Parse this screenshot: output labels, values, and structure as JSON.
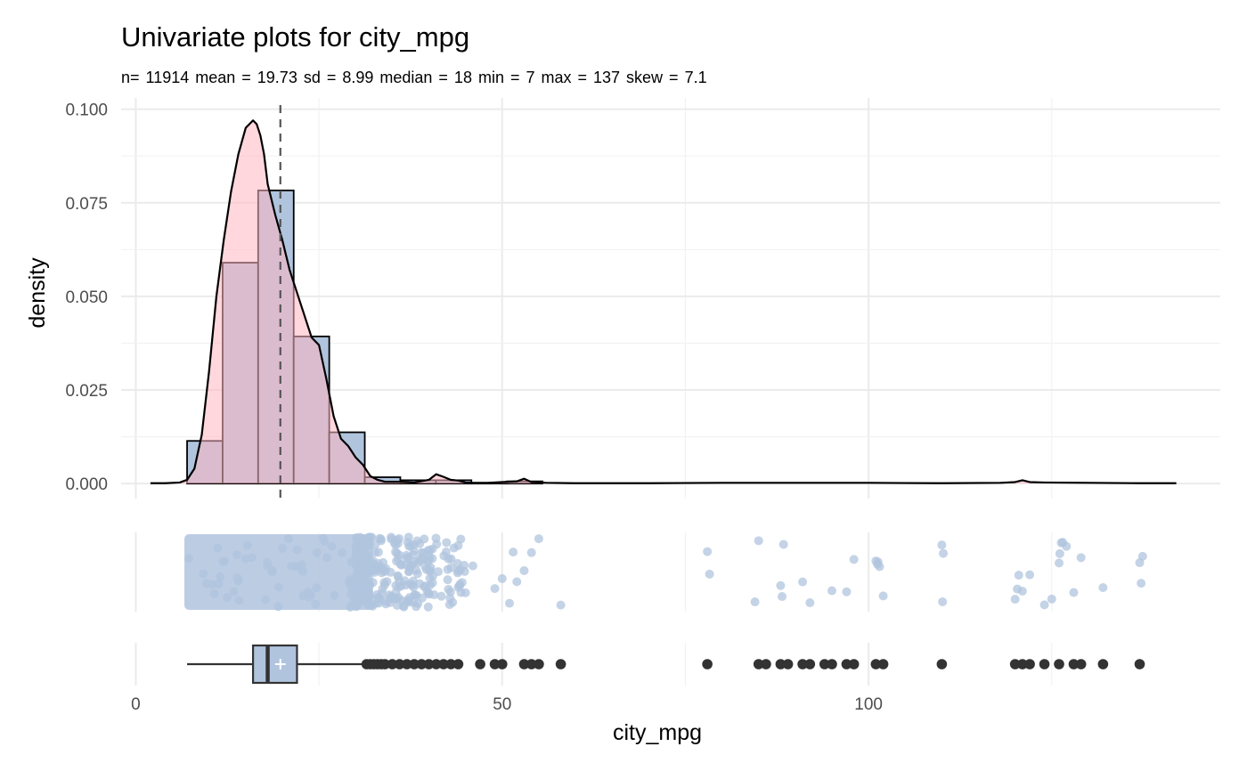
{
  "chart_data": {
    "type": "histogram",
    "title": "Univariate plots for city_mpg",
    "subtitle": "n= 11914  mean = 19.73  sd = 8.99  median = 18  min = 7  max = 137  skew = 7.1",
    "xlabel": "city_mpg",
    "ylabel": "density",
    "xlim": [
      -2,
      148
    ],
    "ylim": [
      -0.004,
      0.103
    ],
    "x_ticks": [
      0,
      50,
      100
    ],
    "x_tick_labels": [
      "0",
      "50",
      "100"
    ],
    "y_ticks": [
      0,
      0.025,
      0.05,
      0.075,
      0.1
    ],
    "y_tick_labels": [
      "0.000",
      "0.025",
      "0.050",
      "0.075",
      "0.100"
    ],
    "grid": true,
    "mean_line_x": 19.73,
    "histogram": {
      "bin_width": 4.85,
      "bins": [
        {
          "x0": 7.0,
          "x1": 11.85,
          "density": 0.0114
        },
        {
          "x0": 11.85,
          "x1": 16.7,
          "density": 0.059
        },
        {
          "x0": 16.7,
          "x1": 21.55,
          "density": 0.0783
        },
        {
          "x0": 21.55,
          "x1": 26.4,
          "density": 0.0393
        },
        {
          "x0": 26.4,
          "x1": 31.25,
          "density": 0.0137
        },
        {
          "x0": 31.25,
          "x1": 36.1,
          "density": 0.0017
        },
        {
          "x0": 36.1,
          "x1": 40.95,
          "density": 0.0009
        },
        {
          "x0": 40.95,
          "x1": 45.8,
          "density": 0.0009
        },
        {
          "x0": 45.8,
          "x1": 50.65,
          "density": 0.0002
        },
        {
          "x0": 50.65,
          "x1": 55.5,
          "density": 0.0006
        }
      ]
    },
    "density_curve": {
      "x": [
        2,
        4,
        6,
        7,
        8,
        9,
        10,
        11,
        12,
        13,
        14,
        15,
        16,
        16.5,
        17,
        17.5,
        18,
        19,
        20,
        21,
        22,
        23,
        24,
        25,
        26,
        27,
        28,
        29,
        30,
        31,
        32,
        33,
        34,
        36,
        38,
        40,
        41,
        42,
        43,
        44,
        45,
        46,
        48,
        50,
        52,
        53,
        54,
        56,
        60,
        70,
        80,
        90,
        100,
        110,
        118,
        120,
        121,
        122,
        124,
        130,
        137,
        142
      ],
      "y": [
        0.0001,
        0.0001,
        0.0003,
        0.001,
        0.004,
        0.013,
        0.03,
        0.05,
        0.065,
        0.078,
        0.088,
        0.095,
        0.097,
        0.096,
        0.093,
        0.088,
        0.08,
        0.072,
        0.065,
        0.057,
        0.051,
        0.045,
        0.039,
        0.037,
        0.028,
        0.018,
        0.012,
        0.01,
        0.007,
        0.005,
        0.002,
        0.001,
        0.0005,
        0.0005,
        0.0003,
        0.001,
        0.0025,
        0.0018,
        0.001,
        0.0008,
        0.0003,
        0.0002,
        0.0002,
        0.0004,
        0.0006,
        0.0013,
        0.0004,
        0.0002,
        0.0001,
        0.0001,
        0.0002,
        0.0002,
        0.0002,
        0.0001,
        0.0002,
        0.0004,
        0.0009,
        0.0004,
        0.0003,
        0.0002,
        0.0001,
        0.0001
      ]
    },
    "jitter_points_x": [
      78,
      78.3,
      84.5,
      85,
      88,
      88.2,
      88.4,
      91,
      92,
      95,
      97,
      98,
      101,
      101.2,
      101.3,
      101.5,
      102,
      110,
      110.1,
      110.2,
      120,
      120.3,
      120.5,
      121,
      122,
      124,
      125,
      126,
      126.1,
      126.3,
      126.5,
      127,
      128,
      129,
      132,
      137,
      137.2,
      137.4,
      49,
      50,
      51,
      51.5,
      52,
      53,
      54,
      55,
      58,
      44,
      45,
      46
    ],
    "boxplot": {
      "whisker_low": 7,
      "q1": 16,
      "median": 18,
      "q3": 22,
      "whisker_high": 31,
      "mean": 19.73,
      "outliers": [
        31.5,
        32,
        32.5,
        33,
        33.5,
        34,
        35,
        36,
        37,
        38,
        39,
        40,
        41,
        42,
        43,
        44,
        47,
        49,
        50,
        53,
        54,
        55,
        58,
        78,
        85,
        86,
        88,
        89,
        91,
        92,
        94,
        95,
        97,
        98,
        101,
        102,
        110,
        120,
        121,
        122,
        124,
        126,
        128,
        129,
        132,
        137
      ]
    }
  }
}
